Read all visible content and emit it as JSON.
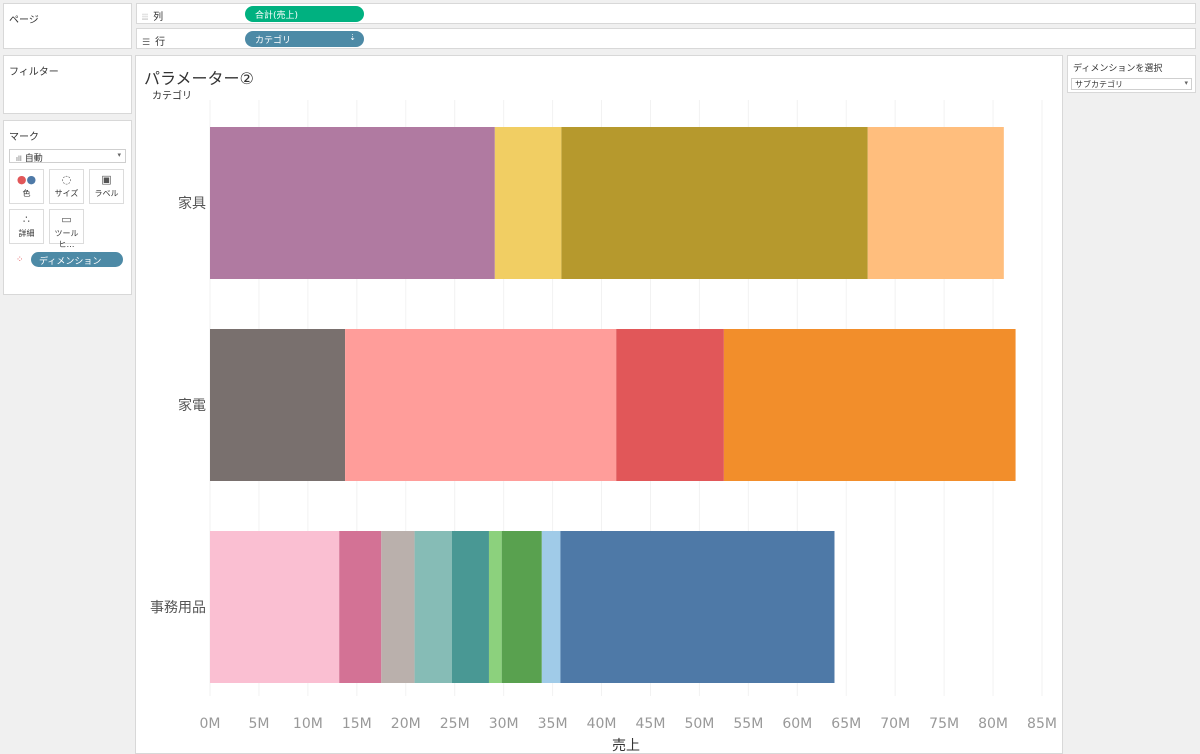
{
  "pages_panel": {
    "title": "ページ"
  },
  "filters_panel": {
    "title": "フィルター"
  },
  "marks_panel": {
    "title": "マーク",
    "mark_type": "自動",
    "buttons": {
      "color": "色",
      "size": "サイズ",
      "label": "ラベル",
      "detail": "詳細",
      "tooltip": "ツールヒ…"
    },
    "dimension_pill": "ディメンション"
  },
  "columns_shelf": {
    "label": "列",
    "pill": "合計(売上)"
  },
  "rows_shelf": {
    "label": "行",
    "pill": "カテゴリ"
  },
  "parameter_card": {
    "title": "ディメンションを選択",
    "value": "サブカテゴリ"
  },
  "worksheet": {
    "title": "パラメーター②"
  },
  "colors": {
    "columns_pill": "#00b180",
    "rows_pill": "#4d8aa6"
  },
  "chart_data": {
    "type": "bar",
    "orientation": "horizontal",
    "stacked": true,
    "row_header": "カテゴリ",
    "xlabel": "売上",
    "xlim": [
      0,
      85000000
    ],
    "x_ticks": [
      "0M",
      "5M",
      "10M",
      "15M",
      "20M",
      "25M",
      "30M",
      "35M",
      "40M",
      "45M",
      "50M",
      "55M",
      "60M",
      "65M",
      "70M",
      "75M",
      "80M",
      "85M"
    ],
    "grid": true,
    "categories": [
      "家具",
      "家電",
      "事務用品"
    ],
    "stacks": [
      {
        "category": "家具",
        "segments": [
          {
            "value": 29100000,
            "color": "#b07aa1"
          },
          {
            "value": 6800000,
            "color": "#f1ce63"
          },
          {
            "value": 31300000,
            "color": "#b6992d"
          },
          {
            "value": 13900000,
            "color": "#ffbe7d"
          }
        ]
      },
      {
        "category": "家電",
        "segments": [
          {
            "value": 13800000,
            "color": "#79706e"
          },
          {
            "value": 27700000,
            "color": "#ff9d9a"
          },
          {
            "value": 11000000,
            "color": "#e15759"
          },
          {
            "value": 29800000,
            "color": "#f28e2b"
          }
        ]
      },
      {
        "category": "事務用品",
        "segments": [
          {
            "value": 13200000,
            "color": "#fabfd2"
          },
          {
            "value": 4300000,
            "color": "#d37295"
          },
          {
            "value": 3400000,
            "color": "#bab0ac"
          },
          {
            "value": 3800000,
            "color": "#86bcb6"
          },
          {
            "value": 3800000,
            "color": "#499894"
          },
          {
            "value": 1300000,
            "color": "#8cd17d"
          },
          {
            "value": 4100000,
            "color": "#59a14f"
          },
          {
            "value": 1900000,
            "color": "#a0cbe8"
          },
          {
            "value": 28000000,
            "color": "#4e79a7"
          }
        ]
      }
    ]
  }
}
